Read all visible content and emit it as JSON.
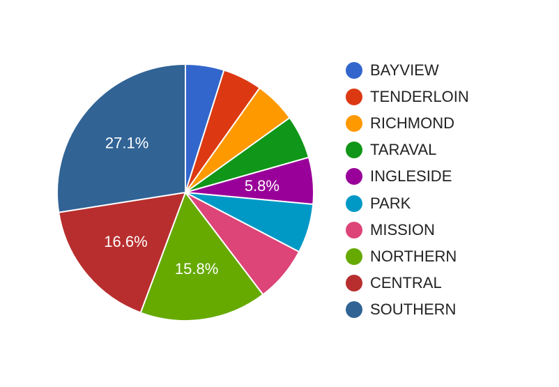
{
  "chart_data": {
    "type": "pie",
    "title": "",
    "legend_position": "right",
    "labels": [
      "BAYVIEW",
      "TENDERLOIN",
      "RICHMOND",
      "TARAVAL",
      "INGLESIDE",
      "PARK",
      "MISSION",
      "NORTHERN",
      "CENTRAL",
      "SOUTHERN"
    ],
    "values": [
      4.8,
      4.9,
      5.2,
      5.4,
      5.8,
      6.1,
      6.9,
      15.8,
      16.6,
      27.1
    ],
    "data_labels": [
      "",
      "",
      "",
      "",
      "5.8%",
      "",
      "",
      "15.8%",
      "16.6%",
      "27.1%"
    ],
    "colors": [
      "#3366cc",
      "#dc3912",
      "#ff9900",
      "#109618",
      "#990099",
      "#0099c6",
      "#dd4477",
      "#66aa00",
      "#b82e2e",
      "#316395"
    ]
  }
}
